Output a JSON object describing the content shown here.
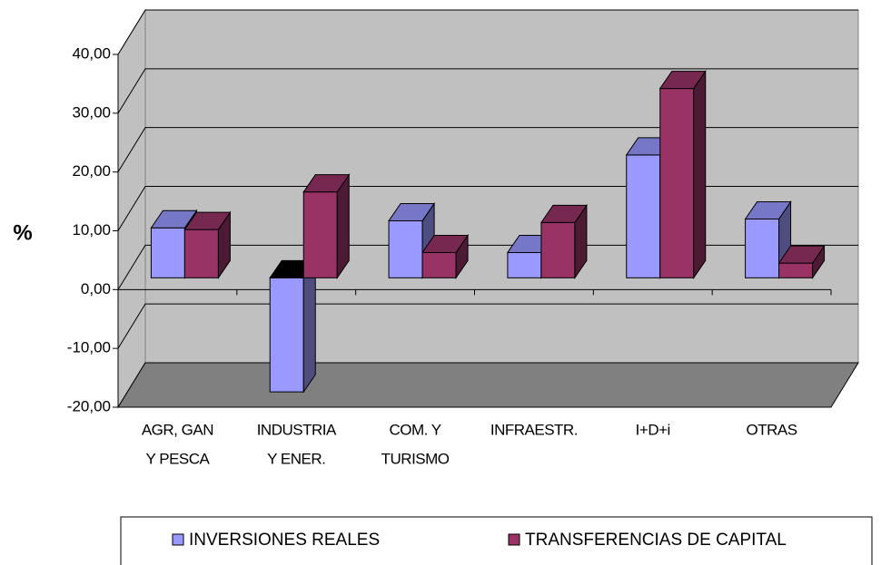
{
  "chart_data": {
    "type": "bar3d",
    "y_axis_label": "%",
    "categories": [
      [
        "AGR, GAN",
        "Y PESCA"
      ],
      [
        "INDUSTRIA",
        "Y ENER."
      ],
      [
        "COM. Y",
        "TURISMO"
      ],
      [
        "INFRAESTR."
      ],
      [
        "I+D+i"
      ],
      [
        "OTRAS"
      ]
    ],
    "series": [
      {
        "name": "INVERSIONES REALES",
        "color": "#9999ff",
        "values": [
          8.5,
          -19.4,
          9.7,
          4.3,
          20.9,
          10.0
        ]
      },
      {
        "name": "TRANSFERENCIAS DE CAPITAL",
        "color": "#993366",
        "values": [
          8.2,
          14.6,
          4.3,
          9.4,
          32.2,
          2.5
        ]
      }
    ],
    "ylim": [
      -20,
      40
    ],
    "yticks": [
      {
        "value": -20,
        "label": "-20,00"
      },
      {
        "value": -10,
        "label": "-10,00"
      },
      {
        "value": 0,
        "label": "0,00"
      },
      {
        "value": 10,
        "label": "10,00"
      },
      {
        "value": 20,
        "label": "20,00"
      },
      {
        "value": 30,
        "label": "30,00"
      },
      {
        "value": 40,
        "label": "40,00"
      }
    ],
    "grid": true,
    "legend": "bottom"
  }
}
